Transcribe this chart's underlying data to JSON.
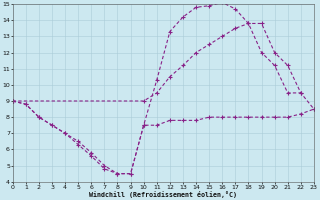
{
  "xlabel": "Windchill (Refroidissement éolien,°C)",
  "xlim": [
    0,
    23
  ],
  "ylim": [
    4,
    15
  ],
  "xticks": [
    0,
    1,
    2,
    3,
    4,
    5,
    6,
    7,
    8,
    9,
    10,
    11,
    12,
    13,
    14,
    15,
    16,
    17,
    18,
    19,
    20,
    21,
    22,
    23
  ],
  "yticks": [
    4,
    5,
    6,
    7,
    8,
    9,
    10,
    11,
    12,
    13,
    14,
    15
  ],
  "background_color": "#cce8f0",
  "grid_color": "#aaccd8",
  "line_color": "#882288",
  "series": [
    {
      "x": [
        0,
        1,
        2,
        3,
        4,
        5,
        6,
        7,
        8,
        9,
        10,
        11,
        12,
        13,
        14,
        15,
        16,
        17,
        18,
        19,
        20,
        21,
        22,
        23
      ],
      "y": [
        9,
        8.8,
        8.0,
        7.5,
        7.0,
        6.3,
        5.6,
        4.8,
        4.5,
        4.5,
        7.5,
        7.5,
        7.8,
        7.8,
        7.8,
        8.0,
        8.0,
        8.0,
        8.0,
        8.0,
        8.0,
        8.0,
        8.2,
        8.5
      ]
    },
    {
      "x": [
        0,
        1,
        2,
        3,
        4,
        5,
        6,
        7,
        8,
        9,
        10,
        11,
        12,
        13,
        14,
        15,
        16,
        17,
        18,
        19,
        20,
        21,
        22
      ],
      "y": [
        9,
        8.8,
        8.0,
        7.5,
        7.0,
        6.5,
        5.8,
        5.0,
        4.5,
        4.5,
        7.5,
        10.3,
        13.3,
        14.2,
        14.8,
        14.9,
        15.1,
        14.7,
        13.8,
        12.0,
        11.2,
        9.5,
        9.5
      ]
    },
    {
      "x": [
        0,
        10,
        11,
        12,
        13,
        14,
        15,
        16,
        17,
        18,
        19,
        20,
        21,
        22,
        23
      ],
      "y": [
        9.0,
        9.0,
        9.5,
        10.5,
        11.2,
        12.0,
        12.5,
        13.0,
        13.5,
        13.8,
        13.8,
        12.0,
        11.2,
        9.5,
        8.5
      ]
    }
  ]
}
